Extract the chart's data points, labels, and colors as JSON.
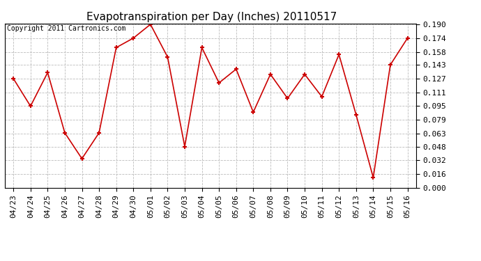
{
  "title": "Evapotranspiration per Day (Inches) 20110517",
  "copyright_text": "Copyright 2011 Cartronics.com",
  "x_labels": [
    "04/23",
    "04/24",
    "04/25",
    "04/26",
    "04/27",
    "04/28",
    "04/29",
    "04/30",
    "05/01",
    "05/02",
    "05/03",
    "05/04",
    "05/05",
    "05/06",
    "05/07",
    "05/08",
    "05/09",
    "05/10",
    "05/11",
    "05/12",
    "05/13",
    "05/14",
    "05/15",
    "05/16"
  ],
  "y_values": [
    0.127,
    0.095,
    0.134,
    0.064,
    0.034,
    0.064,
    0.163,
    0.174,
    0.19,
    0.152,
    0.048,
    0.163,
    0.122,
    0.138,
    0.088,
    0.132,
    0.104,
    0.132,
    0.106,
    0.155,
    0.085,
    0.012,
    0.143,
    0.174
  ],
  "y_ticks": [
    0.0,
    0.016,
    0.032,
    0.048,
    0.063,
    0.079,
    0.095,
    0.111,
    0.127,
    0.143,
    0.158,
    0.174,
    0.19
  ],
  "line_color": "#cc0000",
  "marker": "+",
  "marker_color": "#cc0000",
  "bg_color": "#ffffff",
  "plot_bg_color": "#ffffff",
  "grid_color": "#bbbbbb",
  "title_fontsize": 11,
  "copyright_fontsize": 7,
  "tick_fontsize": 8,
  "ylim_min": 0.0,
  "ylim_max": 0.19
}
